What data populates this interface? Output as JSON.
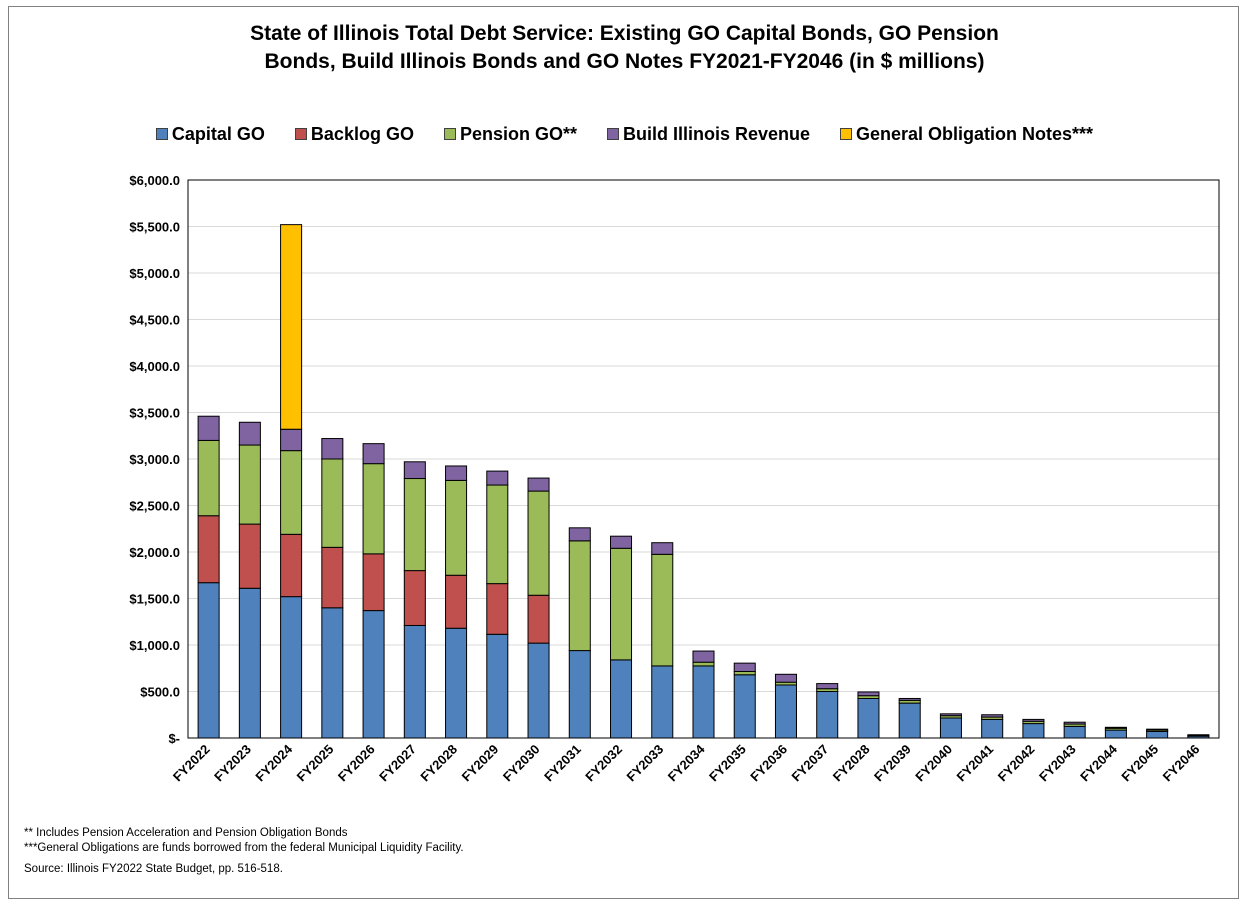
{
  "chart_data": {
    "type": "bar",
    "stacked": true,
    "title": "State of Illinois Total Debt Service: Existing GO Capital Bonds, GO Pension Bonds, Build Illinois Bonds and GO Notes FY2021-FY2046 (in $ millions)",
    "title_lines": [
      "State of Illinois Total Debt Service: Existing GO Capital Bonds, GO Pension",
      "Bonds, Build Illinois Bonds and GO Notes FY2021-FY2046 (in $ millions)"
    ],
    "xlabel": "",
    "ylabel": "",
    "ylim": [
      0,
      6000
    ],
    "y_ticks": [
      0,
      500,
      1000,
      1500,
      2000,
      2500,
      3000,
      3500,
      4000,
      4500,
      5000,
      5500,
      6000
    ],
    "y_tick_labels": [
      "$-",
      "$500.0",
      "$1,000.0",
      "$1,500.0",
      "$2,000.0",
      "$2,500.0",
      "$3,000.0",
      "$3,500.0",
      "$4,000.0",
      "$4,500.0",
      "$5,000.0",
      "$5,500.0",
      "$6,000.0"
    ],
    "grid": true,
    "legend_position": "top",
    "categories": [
      "FY2022",
      "FY2023",
      "FY2024",
      "FY2025",
      "FY2026",
      "FY2027",
      "FY2028",
      "FY2029",
      "FY2030",
      "FY2031",
      "FY2032",
      "FY2033",
      "FY2034",
      "FY2035",
      "FY2036",
      "FY2037",
      "FY2028",
      "FY2039",
      "FY2040",
      "FY2041",
      "FY2042",
      "FY2043",
      "FY2044",
      "FY2045",
      "FY2046"
    ],
    "series": [
      {
        "name": "Capital GO",
        "color": "#4F81BD",
        "values": [
          1670,
          1610,
          1520,
          1400,
          1370,
          1210,
          1180,
          1115,
          1020,
          940,
          840,
          775,
          775,
          680,
          570,
          500,
          425,
          375,
          215,
          200,
          155,
          125,
          85,
          70,
          20
        ]
      },
      {
        "name": "Backlog GO",
        "color": "#C0504D",
        "values": [
          720,
          690,
          670,
          650,
          610,
          590,
          570,
          545,
          515,
          0,
          0,
          0,
          0,
          0,
          0,
          0,
          0,
          0,
          0,
          0,
          0,
          0,
          0,
          0,
          0
        ]
      },
      {
        "name": "Pension GO**",
        "color": "#9BBB59",
        "values": [
          810,
          850,
          900,
          950,
          970,
          990,
          1020,
          1060,
          1120,
          1180,
          1200,
          1200,
          40,
          35,
          30,
          30,
          30,
          30,
          25,
          25,
          25,
          25,
          20,
          15,
          10
        ]
      },
      {
        "name": "Build Illinois Revenue",
        "color": "#8064A2",
        "values": [
          260,
          245,
          230,
          220,
          215,
          180,
          155,
          150,
          140,
          140,
          130,
          125,
          120,
          90,
          85,
          55,
          40,
          20,
          20,
          25,
          20,
          20,
          10,
          10,
          5
        ]
      },
      {
        "name": "General Obligation Notes***",
        "color": "#FFC000",
        "values": [
          0,
          0,
          2200,
          0,
          0,
          0,
          0,
          0,
          0,
          0,
          0,
          0,
          0,
          0,
          0,
          0,
          0,
          0,
          0,
          0,
          0,
          0,
          0,
          0,
          0
        ]
      }
    ]
  },
  "notes": {
    "note1": "** Includes Pension Acceleration and Pension Obligation Bonds",
    "note2": "***General Obligations are funds borrowed from the federal Municipal Liquidity Facility.",
    "source": "Source: Illinois FY2022 State Budget, pp. 516-518."
  }
}
